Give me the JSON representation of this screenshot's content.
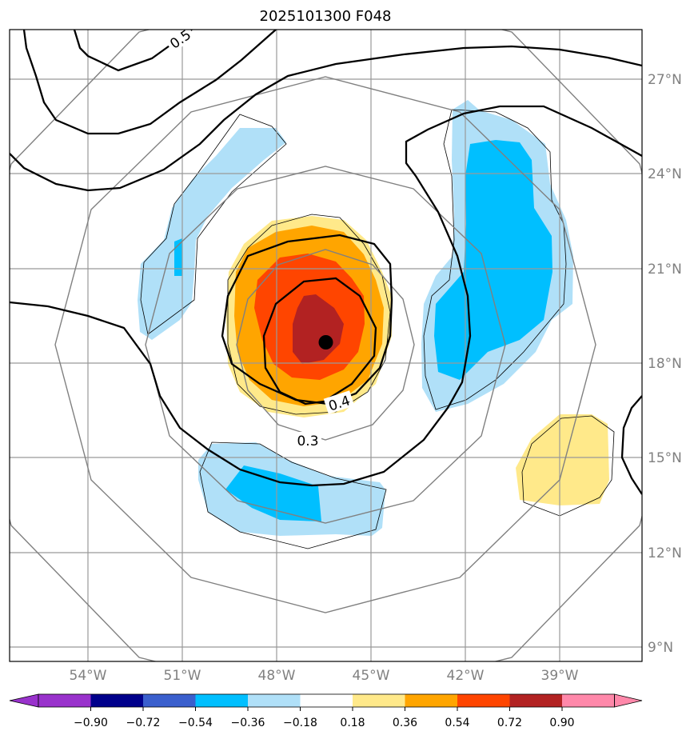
{
  "chart_data": {
    "type": "contour-map",
    "title": "2025101300 F048",
    "lon_ticks": [
      "54°W",
      "51°W",
      "48°W",
      "45°W",
      "42°W",
      "39°W"
    ],
    "lat_ticks": [
      "27°N",
      "24°N",
      "21°N",
      "18°N",
      "15°N",
      "12°N",
      "9°N"
    ],
    "lon_range": [
      -56.5,
      -36.5
    ],
    "lat_range": [
      8.5,
      28.5
    ],
    "storm_center": {
      "lon": -46.5,
      "lat": 18.6
    },
    "contour_labels": [
      "0.3",
      "0.4",
      "0.5"
    ],
    "colorbar": {
      "levels": [
        "−0.90",
        "−0.72",
        "−0.54",
        "−0.36",
        "−0.18",
        "0.18",
        "0.36",
        "0.54",
        "0.72",
        "0.90"
      ],
      "colors": [
        "#9932cc",
        "#00008b",
        "#3a5fcd",
        "#00bfff",
        "#b0e0f8",
        "#ffffff",
        "#ffe98a",
        "#ffa500",
        "#ff4500",
        "#b22222",
        "#ff88aa"
      ],
      "extend": "both"
    },
    "colors": {
      "light_blue": "#b0e0f8",
      "blue": "#00bfff",
      "yellow": "#ffe98a",
      "orange": "#ffa500",
      "red_orange": "#ff4500",
      "dark_red": "#b22222"
    }
  }
}
